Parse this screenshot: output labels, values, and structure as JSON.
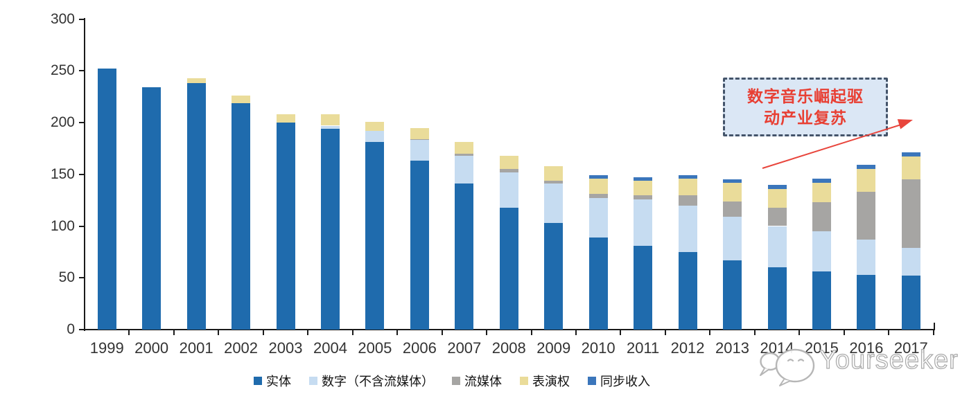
{
  "chart_data": {
    "type": "bar",
    "stacked": true,
    "title": "",
    "xlabel": "",
    "ylabel": "",
    "ylim": [
      0,
      300
    ],
    "yticks": [
      0,
      50,
      100,
      150,
      200,
      250,
      300
    ],
    "grid": false,
    "legend_position": "bottom",
    "categories": [
      "1999",
      "2000",
      "2001",
      "2002",
      "2003",
      "2004",
      "2005",
      "2006",
      "2007",
      "2008",
      "2009",
      "2010",
      "2011",
      "2012",
      "2013",
      "2014",
      "2015",
      "2016",
      "2017"
    ],
    "series": [
      {
        "name": "实体",
        "color": "#1f6bad",
        "values": [
          252,
          234,
          238,
          219,
          200,
          194,
          181,
          163,
          141,
          118,
          103,
          89,
          81,
          75,
          67,
          60,
          56,
          53,
          52
        ]
      },
      {
        "name": "数字（不含流媒体）",
        "color": "#c6dcf1",
        "values": [
          0,
          0,
          0,
          0,
          0,
          3,
          11,
          20,
          27,
          34,
          38,
          38,
          45,
          45,
          42,
          40,
          39,
          34,
          27
        ]
      },
      {
        "name": "流媒体",
        "color": "#a6a5a3",
        "values": [
          0,
          0,
          0,
          0,
          0,
          0,
          0,
          1,
          2,
          3,
          3,
          4,
          4,
          10,
          15,
          18,
          28,
          46,
          66
        ]
      },
      {
        "name": "表演权",
        "color": "#eadc9a",
        "values": [
          0,
          0,
          5,
          7,
          8,
          11,
          9,
          11,
          11,
          13,
          14,
          15,
          14,
          16,
          18,
          18,
          19,
          22,
          22
        ]
      },
      {
        "name": "同步收入",
        "color": "#3b76bb",
        "values": [
          0,
          0,
          0,
          0,
          0,
          0,
          0,
          0,
          0,
          0,
          0,
          3,
          3,
          3,
          3,
          4,
          4,
          4,
          4
        ]
      }
    ]
  },
  "annotation": {
    "line1": "数字音乐崛起驱",
    "line2": "动产业复苏",
    "text_color": "#e83f33",
    "box_fill": "#dbe7f5",
    "box_border": "#44546a",
    "arrow_color": "#e8453c"
  },
  "watermark": {
    "text": "Yourseeker"
  },
  "colors": {
    "axis": "#1a1a1a",
    "tick_label": "#333333",
    "background": "#ffffff"
  }
}
